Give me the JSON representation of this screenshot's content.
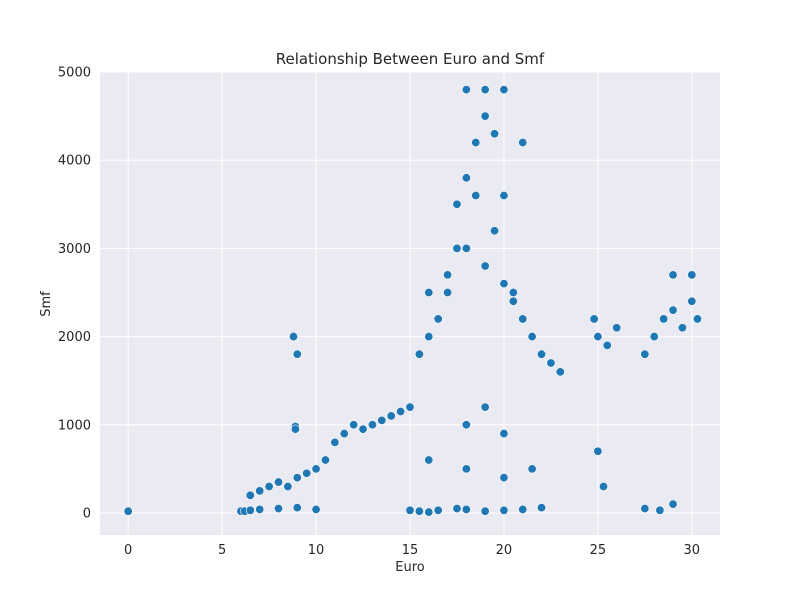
{
  "chart_data": {
    "type": "scatter",
    "title": "Relationship Between Euro and Smf",
    "xlabel": "Euro",
    "ylabel": "Smf",
    "xlim": [
      -1.5,
      31.5
    ],
    "ylim": [
      -250,
      5000
    ],
    "xticks": [
      0,
      5,
      10,
      15,
      20,
      25,
      30
    ],
    "yticks": [
      0,
      1000,
      2000,
      3000,
      4000,
      5000
    ],
    "xtick_labels": [
      "0",
      "5",
      "10",
      "15",
      "20",
      "25",
      "30"
    ],
    "ytick_labels": [
      "0",
      "1000",
      "2000",
      "3000",
      "4000",
      "5000"
    ],
    "grid": true,
    "colors": {
      "background": "#eaeaf2",
      "grid": "#ffffff",
      "point": "#1f77b4",
      "point_edge": "#ffffff"
    },
    "series": [
      {
        "x": [
          0,
          8.8,
          9.0,
          8.9,
          8.9,
          6.5,
          7.0,
          7.5,
          8.0,
          8.5,
          9.0,
          9.5,
          10.0,
          10.5,
          11.0,
          11.5,
          12.0,
          12.5,
          13.0,
          13.5,
          14.0,
          14.5,
          15.0,
          15.5,
          16.0,
          16.5,
          17.0,
          17.5,
          18.0,
          18.5,
          19.0,
          19.5,
          20.0,
          20.5,
          21.0,
          21.5,
          22.0,
          22.5,
          23.0,
          24.8,
          25.0,
          25.5,
          26.0,
          27.5,
          28.0,
          28.5,
          29.0,
          29.5,
          30.0,
          30.3,
          6.0,
          6.2,
          6.5,
          7.0,
          8.0,
          9.0,
          10.0,
          15.0,
          15.5,
          16.0,
          16.5,
          17.5,
          18.0,
          19.0,
          20.0,
          21.0,
          22.0,
          25.3,
          27.5,
          28.3,
          29.0,
          16.0,
          17.0,
          18.0,
          19.0,
          20.0,
          21.0,
          17.5,
          18.0,
          18.5,
          19.0,
          19.5,
          20.0,
          20.5,
          18.0,
          19.0,
          20.0,
          16.0,
          18.0,
          20.0,
          21.5,
          25.0,
          29.0,
          30.0
        ],
        "y": [
          20,
          2000,
          1800,
          980,
          950,
          200,
          250,
          300,
          350,
          300,
          400,
          450,
          500,
          600,
          800,
          900,
          1000,
          950,
          1000,
          1050,
          1100,
          1150,
          1200,
          1800,
          2000,
          2200,
          2500,
          3000,
          3800,
          4200,
          4500,
          4300,
          3600,
          2500,
          2200,
          2000,
          1800,
          1700,
          1600,
          2200,
          2000,
          1900,
          2100,
          1800,
          2000,
          2200,
          2300,
          2100,
          2400,
          2200,
          20,
          20,
          30,
          40,
          50,
          60,
          40,
          30,
          20,
          10,
          30,
          50,
          40,
          20,
          30,
          40,
          60,
          300,
          50,
          30,
          100,
          2500,
          2700,
          4800,
          4800,
          4800,
          4200,
          3500,
          3000,
          3600,
          2800,
          3200,
          2600,
          2400,
          1000,
          1200,
          900,
          600,
          500,
          400,
          500,
          700,
          2700,
          2700
        ]
      }
    ]
  }
}
